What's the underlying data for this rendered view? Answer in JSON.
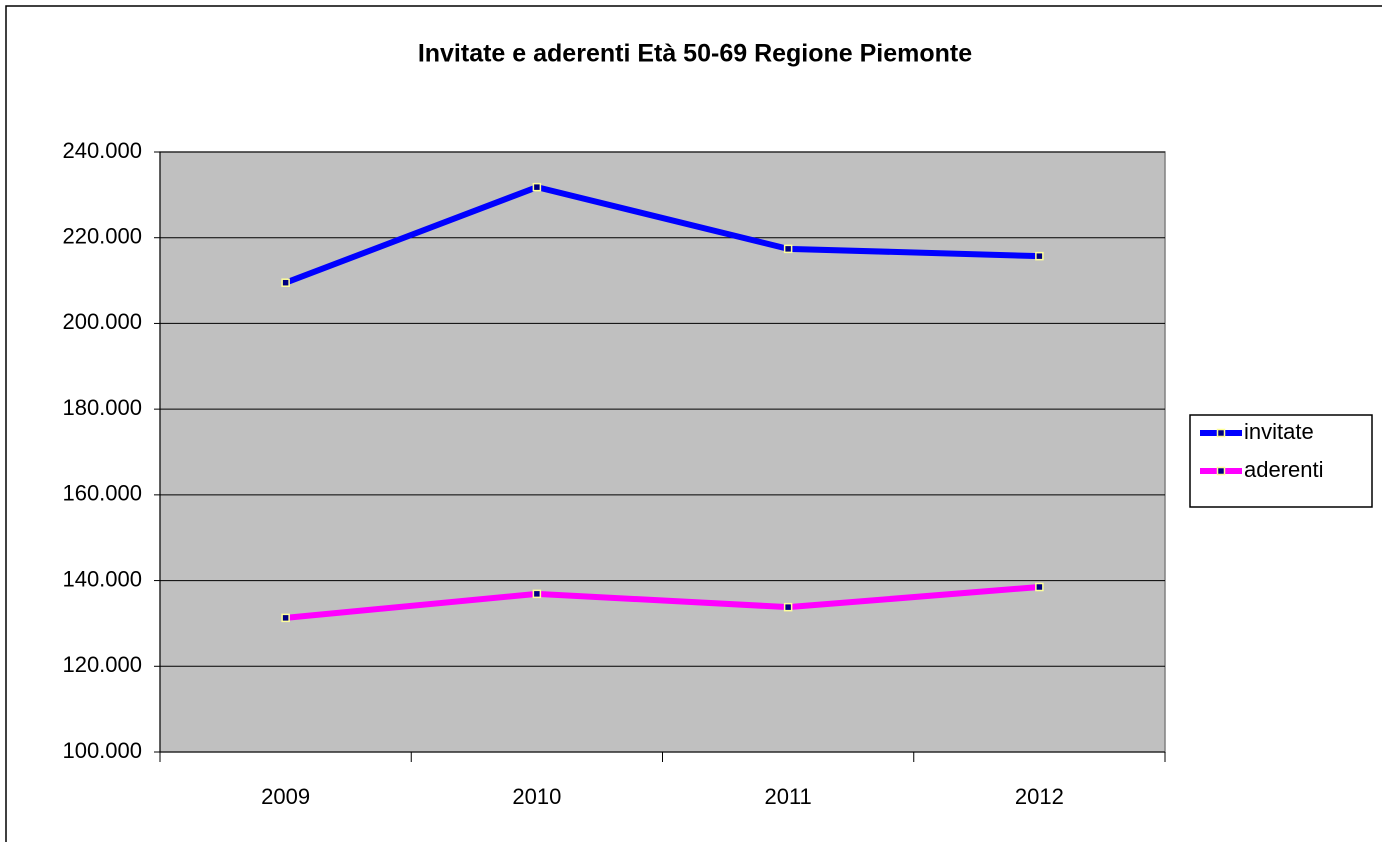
{
  "chart_data": {
    "type": "line",
    "title": "Invitate e aderenti Età 50-69 Regione Piemonte",
    "categories": [
      "2009",
      "2010",
      "2011",
      "2012"
    ],
    "series": [
      {
        "name": "invitate",
        "color": "#0000ff",
        "values": [
          209500,
          231800,
          217400,
          215700
        ]
      },
      {
        "name": "aderenti",
        "color": "#ff00ff",
        "values": [
          131300,
          136900,
          133800,
          138500
        ]
      }
    ],
    "ylim": [
      100000,
      240000
    ],
    "yticks": [
      {
        "value": 100000,
        "label": "100.000"
      },
      {
        "value": 120000,
        "label": "120.000"
      },
      {
        "value": 140000,
        "label": "140.000"
      },
      {
        "value": 160000,
        "label": "160.000"
      },
      {
        "value": 180000,
        "label": "180.000"
      },
      {
        "value": 200000,
        "label": "200.000"
      },
      {
        "value": 220000,
        "label": "220.000"
      },
      {
        "value": 240000,
        "label": "240.000"
      }
    ],
    "grid": true,
    "legend": "right"
  }
}
